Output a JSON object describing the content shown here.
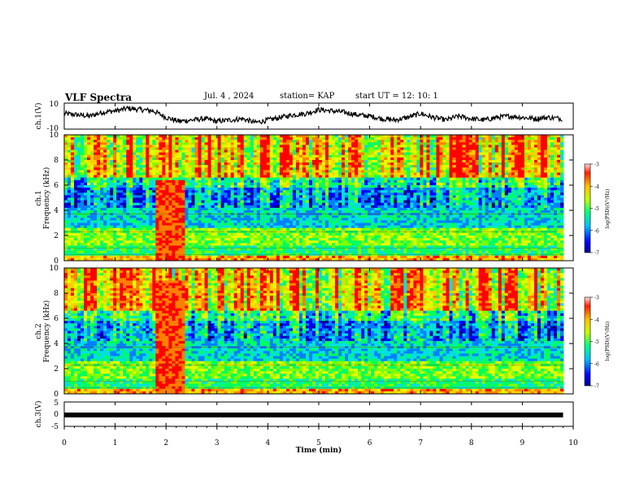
{
  "header": {
    "title": "VLF Spectra",
    "date": "Jul. 4 , 2024",
    "station": "station= KAP",
    "start": "start UT = 12: 10: 1"
  },
  "chart_data": [
    {
      "type": "line",
      "ylabel": "ch.1(V)",
      "ylim": [
        -10,
        10
      ],
      "yticks": [
        "10",
        "-10"
      ],
      "xlim": [
        0,
        10
      ],
      "series": [
        {
          "color": "#000000",
          "x": [
            0,
            0.25,
            0.5,
            0.75,
            1.0,
            1.25,
            1.5,
            1.75,
            2.0,
            2.25,
            2.5,
            2.75,
            3.0,
            3.25,
            3.5,
            3.75,
            4.0,
            4.25,
            4.5,
            4.75,
            5.0,
            5.25,
            5.5,
            5.75,
            6.0,
            6.25,
            6.5,
            6.75,
            7.0,
            7.25,
            7.5,
            7.75,
            8.0,
            8.25,
            8.5,
            8.75,
            9.0,
            9.25,
            9.5,
            9.8
          ],
          "y": [
            2,
            1,
            0,
            3,
            4,
            6,
            5,
            4,
            -1,
            -4,
            -3,
            -2,
            -4,
            -3,
            -2,
            -5,
            -3,
            -1,
            1,
            2,
            5,
            4,
            3,
            1,
            0,
            -2,
            -3,
            -1,
            2,
            -1,
            -3,
            0,
            -2,
            -3,
            -1,
            0,
            -1,
            -2,
            -1,
            -2
          ]
        }
      ]
    },
    {
      "type": "heatmap",
      "ylabel": "ch.1\nFrequency (kHz)",
      "ylim": [
        0,
        10
      ],
      "yticks": [
        "0",
        "2",
        "4",
        "6",
        "8",
        "10"
      ],
      "xlim": [
        0,
        10
      ],
      "colorbar": {
        "label": "log(PSD)(V²/Hz)",
        "range": [
          -7,
          -3
        ],
        "ticks": [
          "-3",
          "-4",
          "-5",
          "-6",
          "-7"
        ]
      }
    },
    {
      "type": "heatmap",
      "ylabel": "ch.2\nFrequency (kHz)",
      "ylim": [
        0,
        10
      ],
      "yticks": [
        "0",
        "2",
        "4",
        "6",
        "8",
        "10"
      ],
      "xlim": [
        0,
        10
      ],
      "colorbar": {
        "label": "log(PSD)(V²/Hz)",
        "range": [
          -7,
          -3
        ],
        "ticks": [
          "-3",
          "-4",
          "-5",
          "-6",
          "-7"
        ]
      }
    },
    {
      "type": "line",
      "ylabel": "ch.3(V)",
      "ylim": [
        -5,
        5
      ],
      "yticks": [
        "5",
        "0",
        "-5"
      ],
      "xlim": [
        0,
        10
      ],
      "xlabel": "Time (min)",
      "xticks": [
        "0",
        "1",
        "2",
        "3",
        "4",
        "5",
        "6",
        "7",
        "8",
        "9",
        "10"
      ],
      "series": [
        {
          "color": "#000000",
          "x": [
            0,
            9.8
          ],
          "y": [
            0,
            0
          ]
        }
      ]
    }
  ],
  "colormap": [
    "#000088",
    "#0000ff",
    "#0080ff",
    "#00e0e0",
    "#00ff60",
    "#80ff00",
    "#e0ff00",
    "#ffd000",
    "#ff8000",
    "#ff0000"
  ]
}
